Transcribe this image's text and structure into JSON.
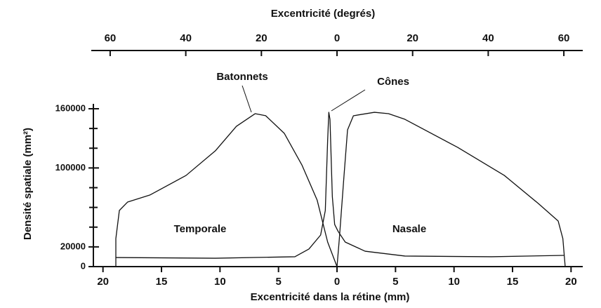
{
  "chart_data": {
    "type": "line",
    "title": "Excentricité (degrés)",
    "xlabel": "Excentricité dans la rétine (mm)",
    "ylabel": "Densité spatiale (mm²)",
    "xlim": [
      -21,
      21
    ],
    "xticks": [
      {
        "value": -20,
        "label": "20"
      },
      {
        "value": -15,
        "label": "15"
      },
      {
        "value": -10,
        "label": "10"
      },
      {
        "value": -5,
        "label": "5"
      },
      0,
      5,
      10,
      15,
      20
    ],
    "x2lim": [
      -65,
      65
    ],
    "x2ticks": [
      {
        "value": -60,
        "label": "60"
      },
      {
        "value": -40,
        "label": "40"
      },
      {
        "value": -20,
        "label": "20"
      },
      0,
      20,
      40,
      60
    ],
    "ylim": [
      0,
      160000
    ],
    "yticks": [
      0,
      20000,
      100000,
      160000
    ],
    "yminor": [
      40000,
      60000,
      80000,
      120000,
      140000
    ],
    "series": [
      {
        "name": "Batonnets",
        "color": "#111111",
        "x": [
          -18.9,
          -18.9,
          -18.6,
          -17.9,
          -16.0,
          -12.9,
          -10.4,
          -8.6,
          -7.0,
          -6.1,
          -4.5,
          -3.0,
          -1.7,
          -0.8,
          0,
          0.2,
          0.6,
          0.9,
          1.4,
          3.2,
          4.4,
          5.8,
          10.3,
          14.3,
          17.2,
          18.9,
          19.3,
          19.5
        ],
        "values": [
          0,
          28400,
          56900,
          65400,
          72500,
          92400,
          117300,
          142200,
          155000,
          153000,
          135000,
          103000,
          67500,
          24900,
          0,
          28400,
          92400,
          138600,
          152900,
          156400,
          155000,
          149300,
          120900,
          92400,
          64000,
          46200,
          28400,
          0
        ]
      },
      {
        "name": "Cônes",
        "color": "#111111",
        "x": [
          -18.9,
          -10.4,
          -3.6,
          -2.4,
          -1.4,
          -1.0,
          -0.8,
          -0.7,
          -0.6,
          -0.4,
          -0.2,
          0.1,
          0.7,
          2.4,
          5.8,
          13.2,
          19.4
        ],
        "values": [
          9200,
          8500,
          10000,
          17800,
          32000,
          56900,
          128000,
          156400,
          149300,
          71100,
          42700,
          35600,
          24900,
          15600,
          10700,
          10000,
          11400
        ]
      }
    ],
    "annotations": [
      "Temporale",
      "Nasale"
    ]
  }
}
